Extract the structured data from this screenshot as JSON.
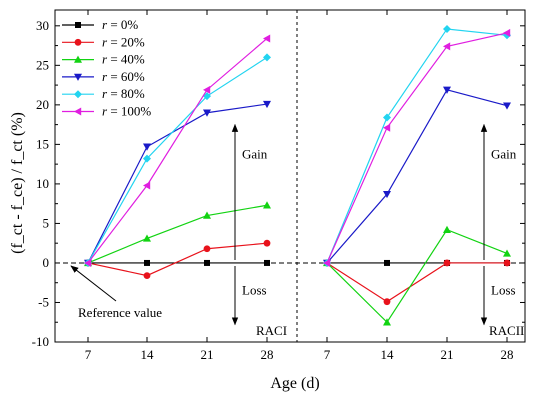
{
  "chart_data": {
    "type": "line",
    "xlabel": "Age (d)",
    "ylabel": "(f_ct - f_ce) / f_ct (%)",
    "ylim": [
      -10,
      32
    ],
    "yticks": [
      -10,
      -5,
      0,
      5,
      10,
      15,
      20,
      25,
      30
    ],
    "x_categories": [
      "7",
      "14",
      "21",
      "28"
    ],
    "legend": {
      "placement": "top-left",
      "prefix": "r",
      "eq": " = "
    },
    "panels": [
      {
        "label": "RACI",
        "series": [
          {
            "name": "0%",
            "color": "#000000",
            "marker": "square",
            "values": [
              0,
              0,
              0,
              0
            ]
          },
          {
            "name": "20%",
            "color": "#e8121b",
            "marker": "circle",
            "values": [
              0,
              -1.6,
              1.8,
              2.5
            ]
          },
          {
            "name": "40%",
            "color": "#12d312",
            "marker": "triangle-up",
            "values": [
              0,
              3.1,
              6.0,
              7.3
            ]
          },
          {
            "name": "60%",
            "color": "#1a1ac8",
            "marker": "triangle-down",
            "values": [
              0,
              14.7,
              19.0,
              20.1
            ]
          },
          {
            "name": "80%",
            "color": "#22d4f0",
            "marker": "diamond",
            "values": [
              0,
              13.2,
              21.1,
              26.0
            ]
          },
          {
            "name": "100%",
            "color": "#e01ee0",
            "marker": "triangle-left",
            "values": [
              0,
              9.8,
              21.9,
              28.4
            ]
          }
        ]
      },
      {
        "label": "RACII",
        "series": [
          {
            "name": "0%",
            "color": "#000000",
            "marker": "square",
            "values": [
              0,
              0,
              0,
              0
            ]
          },
          {
            "name": "20%",
            "color": "#e8121b",
            "marker": "circle",
            "values": [
              0,
              -4.9,
              0,
              0
            ]
          },
          {
            "name": "40%",
            "color": "#12d312",
            "marker": "triangle-up",
            "values": [
              0,
              -7.5,
              4.2,
              1.2
            ]
          },
          {
            "name": "60%",
            "color": "#1a1ac8",
            "marker": "triangle-down",
            "values": [
              0,
              8.7,
              21.9,
              19.9
            ]
          },
          {
            "name": "80%",
            "color": "#22d4f0",
            "marker": "diamond",
            "values": [
              0,
              18.4,
              29.6,
              28.8
            ]
          },
          {
            "name": "100%",
            "color": "#e01ee0",
            "marker": "triangle-left",
            "values": [
              0,
              17.1,
              27.4,
              29.1
            ]
          }
        ]
      }
    ],
    "annotations": {
      "gain": "Gain",
      "loss": "Loss",
      "reference": "Reference value"
    }
  }
}
